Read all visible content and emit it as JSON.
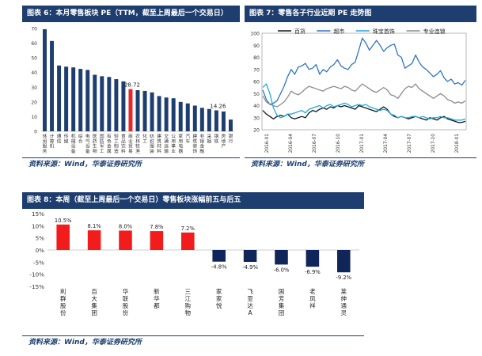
{
  "headers": {
    "chart1": "图表 6：本月零售板块 PE（TTM，截至上周最后一个交易日）",
    "chart2": "图表 7：零售各子行业近期 PE 走势图",
    "chart3": "图表 8：本周（截至上周最后一个交易日）零售板块涨幅前五与后五"
  },
  "sources": {
    "chart1": "资料来源：Wind，华泰证券研究所",
    "chart2": "资料来源：Wind，华泰证券研究所",
    "chart3": "资料来源：Wind，华泰证券研究所"
  },
  "chart_data": [
    {
      "type": "bar",
      "ylim": [
        0,
        70
      ],
      "yticks": [
        0,
        10,
        20,
        30,
        40,
        50,
        60,
        70
      ],
      "categories": [
        "休闲服务",
        "计算机",
        "通信",
        "传媒",
        "机械设备",
        "综合",
        "电气设备",
        "医药生物",
        "国防军工",
        "有色金属",
        "轻工制造",
        "食品饮料",
        "商业贸易",
        "农林牧渔",
        "化工",
        "纺织服装",
        "建筑材料",
        "交通运输",
        "公用事业",
        "家用电器",
        "汽车",
        "建筑装饰",
        "非银金融",
        "采掘",
        "钢铁",
        "房地产",
        "银行"
      ],
      "values": [
        69.5,
        61.5,
        44.8,
        44.0,
        43.5,
        42.5,
        41.8,
        38.5,
        37.5,
        37.0,
        35.5,
        34.0,
        28.72,
        28.0,
        27.5,
        26.5,
        24.0,
        23.0,
        22.5,
        20.0,
        19.0,
        17.5,
        16.0,
        15.2,
        14.26,
        13.5,
        8.0
      ],
      "highlight_category": "商业贸易",
      "labels": [
        {
          "category": "商业贸易",
          "text": "28.72"
        },
        {
          "category": "钢铁",
          "text": "14.26"
        }
      ],
      "colors": {
        "bar": "#1d3e6e",
        "highlight": "#e8262a"
      }
    },
    {
      "type": "line",
      "ylim": [
        20,
        100
      ],
      "yticks": [
        20,
        30,
        40,
        50,
        60,
        70,
        80,
        90,
        100
      ],
      "xticks": [
        "2016-01",
        "2016-04",
        "2016-07",
        "2016-10",
        "2017-01",
        "2017-04",
        "2017-07",
        "2017-10",
        "2018-01"
      ],
      "legend_position": "top",
      "series": [
        {
          "name": "百货",
          "color": "#101820",
          "values": [
            36,
            33,
            31,
            29,
            31,
            32,
            31,
            33,
            30,
            29,
            30,
            31,
            30,
            34,
            36,
            35,
            37,
            38,
            37,
            39,
            38,
            40,
            39,
            40,
            39,
            38,
            37,
            40,
            39,
            38,
            37,
            36,
            35,
            37,
            39,
            37,
            33,
            31,
            30,
            31,
            30,
            29,
            30,
            31,
            30,
            29,
            28,
            30,
            29,
            28,
            30,
            31,
            29,
            28,
            27,
            26,
            26,
            27
          ]
        },
        {
          "name": "超市",
          "color": "#2f74c6",
          "values": [
            53,
            45,
            41,
            42,
            44,
            50,
            56,
            64,
            70,
            66,
            72,
            73,
            75,
            70,
            71,
            74,
            66,
            70,
            68,
            72,
            74,
            78,
            73,
            71,
            70,
            74,
            76,
            86,
            96,
            92,
            86,
            90,
            94,
            90,
            85,
            88,
            90,
            91,
            82,
            80,
            71,
            73,
            75,
            82,
            76,
            72,
            70,
            67,
            64,
            66,
            69,
            63,
            60,
            62,
            58,
            59,
            57,
            61
          ]
        },
        {
          "name": "珠宝首饰",
          "color": "#21a8e0",
          "values": [
            55,
            58,
            50,
            38,
            32,
            30,
            31,
            33,
            33,
            34,
            35,
            36,
            34,
            37,
            38,
            39,
            40,
            38,
            40,
            41,
            39,
            40,
            41,
            42,
            41,
            39,
            40,
            41,
            40,
            41,
            39,
            38,
            37,
            36,
            37,
            36,
            33,
            32,
            30,
            31,
            30,
            30,
            31,
            31,
            30,
            31,
            30,
            29,
            30,
            30,
            31,
            30,
            30,
            29,
            28,
            28,
            28,
            29
          ]
        },
        {
          "name": "专业连锁",
          "color": "#8c8c8c",
          "values": [
            48,
            43,
            41,
            40,
            39,
            41,
            43,
            47,
            52,
            50,
            49,
            51,
            54,
            56,
            55,
            54,
            53,
            52,
            54,
            55,
            56,
            55,
            54,
            56,
            55,
            53,
            52,
            55,
            58,
            56,
            54,
            52,
            51,
            53,
            55,
            53,
            49,
            48,
            46,
            50,
            54,
            56,
            55,
            58,
            54,
            52,
            50,
            48,
            46,
            48,
            50,
            48,
            45,
            44,
            42,
            43,
            42,
            44
          ]
        }
      ]
    },
    {
      "type": "bar",
      "ylim": [
        -15,
        15
      ],
      "yticks": [
        "15%",
        "10%",
        "5%",
        "0%",
        "-5%",
        "-10%",
        "-15%"
      ],
      "categories": [
        "利群股份",
        "百大集团",
        "华联股份",
        "新华都",
        "三江购物",
        "家家悦",
        "飞亚达A",
        "国芳集团",
        "老凤祥",
        "莱绅通灵"
      ],
      "values": [
        10.5,
        8.1,
        8.0,
        7.8,
        7.2,
        -4.8,
        -4.9,
        -6.0,
        -6.9,
        -9.2
      ],
      "labels": [
        "10.5%",
        "8.1%",
        "8.0%",
        "7.8%",
        "7.2%",
        "-4.8%",
        "-4.9%",
        "-6.0%",
        "-6.9%",
        "-9.2%"
      ],
      "colors": {
        "positive": "#f21c1c",
        "negative": "#10265a"
      }
    }
  ]
}
